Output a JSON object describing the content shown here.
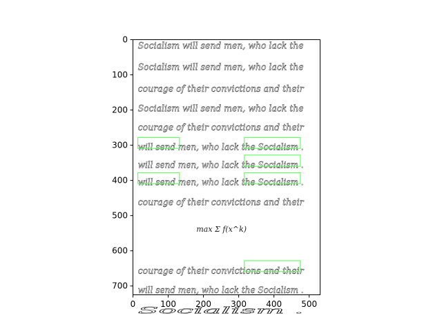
{
  "figure": {
    "x_ticks": [
      "0",
      "100",
      "200",
      "300",
      "400",
      "500"
    ],
    "y_ticks": [
      "0",
      "100",
      "200",
      "300",
      "400",
      "500",
      "600",
      "700"
    ]
  },
  "document": {
    "lines": [
      {
        "id": "line-1",
        "text": "Socialism will send men, who lack the",
        "y": 18
      },
      {
        "id": "line-2",
        "text": "Socialism will send men, who lack the",
        "y": 78
      },
      {
        "id": "line-3",
        "text": "courage of their convictions and their",
        "y": 140
      },
      {
        "id": "line-4",
        "text": "Socialism will send men, who lack the",
        "y": 196
      },
      {
        "id": "line-5",
        "text": "courage of their convictions and their",
        "y": 250
      },
      {
        "id": "line-6",
        "text": "will send men, who lack the Socialism .",
        "y": 306
      },
      {
        "id": "line-7",
        "text": "will send men, who lack the Socialism .",
        "y": 357
      },
      {
        "id": "line-8",
        "text": "will send men, who lack the Socialism .",
        "y": 406
      },
      {
        "id": "line-9",
        "text": "courage of their convictions and their",
        "y": 462
      },
      {
        "id": "line-11",
        "text": "courage of their convictions and their",
        "y": 657
      },
      {
        "id": "line-12",
        "text": "will send men, who lack the Socialism .",
        "y": 712
      },
      {
        "id": "line-13",
        "text": "Socialism .",
        "y": 770
      }
    ],
    "formula": "max Σ f(x^k)",
    "highlight_boxes": [
      {
        "id": "box-1",
        "x0": 14,
        "y0": 278,
        "x1": 132,
        "y1": 309
      },
      {
        "id": "box-2",
        "x0": 316,
        "y0": 278,
        "x1": 475,
        "y1": 309
      },
      {
        "id": "box-3",
        "x0": 316,
        "y0": 328,
        "x1": 475,
        "y1": 360
      },
      {
        "id": "box-4",
        "x0": 14,
        "y0": 378,
        "x1": 132,
        "y1": 409
      },
      {
        "id": "box-5",
        "x0": 316,
        "y0": 378,
        "x1": 475,
        "y1": 409
      },
      {
        "id": "box-6",
        "x0": 316,
        "y0": 628,
        "x1": 475,
        "y1": 659
      }
    ],
    "box_color": "#4cff4c"
  }
}
